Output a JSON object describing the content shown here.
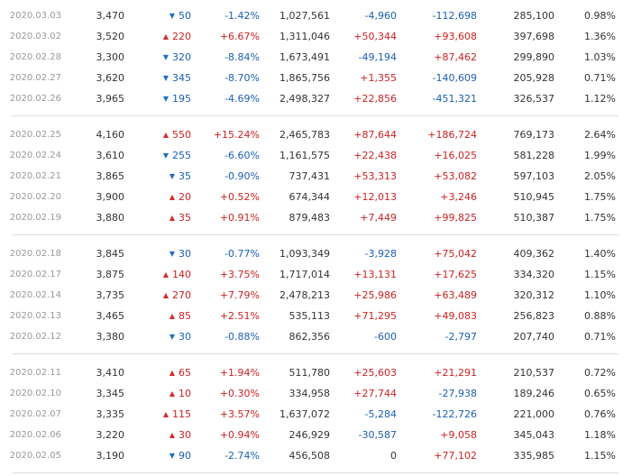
{
  "groups": [
    {
      "rows": [
        {
          "date": "2020.03.03",
          "close": "3,470",
          "dir": "down",
          "change": "50",
          "rate": "-1.42%",
          "volume": "1,027,561",
          "institution": "-4,960",
          "foreign": "-112,698",
          "holdings": "285,100",
          "ratio": "0.98%"
        },
        {
          "date": "2020.03.02",
          "close": "3,520",
          "dir": "up",
          "change": "220",
          "rate": "+6.67%",
          "volume": "1,311,046",
          "institution": "+50,344",
          "foreign": "+93,608",
          "holdings": "397,698",
          "ratio": "1.36%"
        },
        {
          "date": "2020.02.28",
          "close": "3,300",
          "dir": "down",
          "change": "320",
          "rate": "-8.84%",
          "volume": "1,673,491",
          "institution": "-49,194",
          "foreign": "+87,462",
          "holdings": "299,890",
          "ratio": "1.03%"
        },
        {
          "date": "2020.02.27",
          "close": "3,620",
          "dir": "down",
          "change": "345",
          "rate": "-8.70%",
          "volume": "1,865,756",
          "institution": "+1,355",
          "foreign": "-140,609",
          "holdings": "205,928",
          "ratio": "0.71%"
        },
        {
          "date": "2020.02.26",
          "close": "3,965",
          "dir": "down",
          "change": "195",
          "rate": "-4.69%",
          "volume": "2,498,327",
          "institution": "+22,856",
          "foreign": "-451,321",
          "holdings": "326,537",
          "ratio": "1.12%"
        }
      ]
    },
    {
      "rows": [
        {
          "date": "2020.02.25",
          "close": "4,160",
          "dir": "up",
          "change": "550",
          "rate": "+15.24%",
          "volume": "2,465,783",
          "institution": "+87,644",
          "foreign": "+186,724",
          "holdings": "769,173",
          "ratio": "2.64%"
        },
        {
          "date": "2020.02.24",
          "close": "3,610",
          "dir": "down",
          "change": "255",
          "rate": "-6.60%",
          "volume": "1,161,575",
          "institution": "+22,438",
          "foreign": "+16,025",
          "holdings": "581,228",
          "ratio": "1.99%"
        },
        {
          "date": "2020.02.21",
          "close": "3,865",
          "dir": "down",
          "change": "35",
          "rate": "-0.90%",
          "volume": "737,431",
          "institution": "+53,313",
          "foreign": "+53,082",
          "holdings": "597,103",
          "ratio": "2.05%"
        },
        {
          "date": "2020.02.20",
          "close": "3,900",
          "dir": "up",
          "change": "20",
          "rate": "+0.52%",
          "volume": "674,344",
          "institution": "+12,013",
          "foreign": "+3,246",
          "holdings": "510,945",
          "ratio": "1.75%"
        },
        {
          "date": "2020.02.19",
          "close": "3,880",
          "dir": "up",
          "change": "35",
          "rate": "+0.91%",
          "volume": "879,483",
          "institution": "+7,449",
          "foreign": "+99,825",
          "holdings": "510,387",
          "ratio": "1.75%"
        }
      ]
    },
    {
      "rows": [
        {
          "date": "2020.02.18",
          "close": "3,845",
          "dir": "down",
          "change": "30",
          "rate": "-0.77%",
          "volume": "1,093,349",
          "institution": "-3,928",
          "foreign": "+75,042",
          "holdings": "409,362",
          "ratio": "1.40%"
        },
        {
          "date": "2020.02.17",
          "close": "3,875",
          "dir": "up",
          "change": "140",
          "rate": "+3.75%",
          "volume": "1,717,014",
          "institution": "+13,131",
          "foreign": "+17,625",
          "holdings": "334,320",
          "ratio": "1.15%"
        },
        {
          "date": "2020.02.14",
          "close": "3,735",
          "dir": "up",
          "change": "270",
          "rate": "+7.79%",
          "volume": "2,478,213",
          "institution": "+25,986",
          "foreign": "+63,489",
          "holdings": "320,312",
          "ratio": "1.10%"
        },
        {
          "date": "2020.02.13",
          "close": "3,465",
          "dir": "up",
          "change": "85",
          "rate": "+2.51%",
          "volume": "535,113",
          "institution": "+71,295",
          "foreign": "+49,083",
          "holdings": "256,823",
          "ratio": "0.88%"
        },
        {
          "date": "2020.02.12",
          "close": "3,380",
          "dir": "down",
          "change": "30",
          "rate": "-0.88%",
          "volume": "862,356",
          "institution": "-600",
          "foreign": "-2,797",
          "holdings": "207,740",
          "ratio": "0.71%"
        }
      ]
    },
    {
      "rows": [
        {
          "date": "2020.02.11",
          "close": "3,410",
          "dir": "up",
          "change": "65",
          "rate": "+1.94%",
          "volume": "511,780",
          "institution": "+25,603",
          "foreign": "+21,291",
          "holdings": "210,537",
          "ratio": "0.72%"
        },
        {
          "date": "2020.02.10",
          "close": "3,345",
          "dir": "up",
          "change": "10",
          "rate": "+0.30%",
          "volume": "334,958",
          "institution": "+27,744",
          "foreign": "-27,938",
          "holdings": "189,246",
          "ratio": "0.65%"
        },
        {
          "date": "2020.02.07",
          "close": "3,335",
          "dir": "up",
          "change": "115",
          "rate": "+3.57%",
          "volume": "1,637,072",
          "institution": "-5,284",
          "foreign": "-122,726",
          "holdings": "221,000",
          "ratio": "0.76%"
        },
        {
          "date": "2020.02.06",
          "close": "3,220",
          "dir": "up",
          "change": "30",
          "rate": "+0.94%",
          "volume": "246,929",
          "institution": "-30,587",
          "foreign": "+9,058",
          "holdings": "345,043",
          "ratio": "1.18%"
        },
        {
          "date": "2020.02.05",
          "close": "3,190",
          "dir": "down",
          "change": "90",
          "rate": "-2.74%",
          "volume": "456,508",
          "institution": "0",
          "foreign": "+77,102",
          "holdings": "335,985",
          "ratio": "1.15%"
        }
      ]
    }
  ],
  "icons": {
    "up": "arrow-up-icon",
    "down": "arrow-down-icon"
  },
  "colors": {
    "up": "#cc2222",
    "down": "#1a5fb4",
    "neutral": "#333333",
    "date": "#999999",
    "divider": "#dddddd"
  }
}
